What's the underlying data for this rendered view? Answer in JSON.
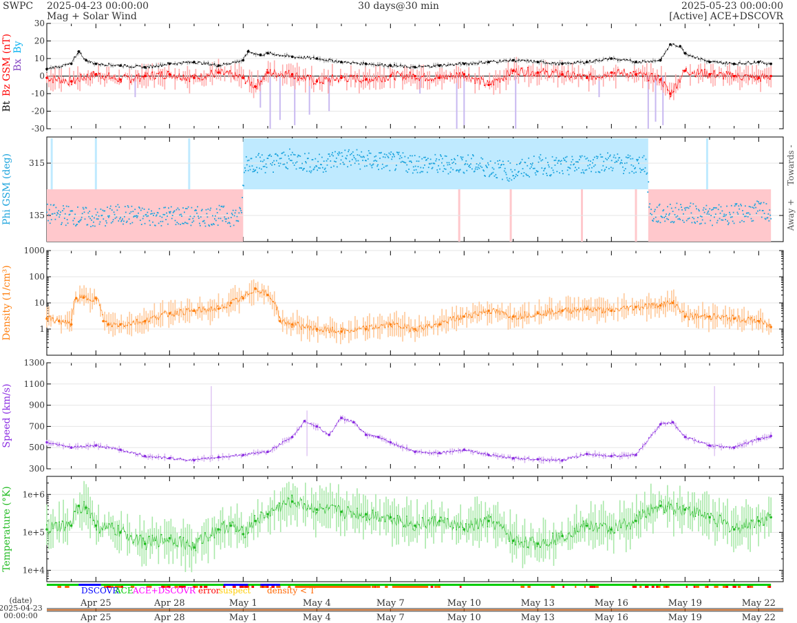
{
  "header": {
    "org": "SWPC",
    "start": "2025-04-23 00:00:00",
    "subtitle": "Mag + Solar Wind",
    "span": "30 days@30 min",
    "end": "2025-05-23 00:00:00",
    "source": "[Active] ACE+DSCOVR"
  },
  "colors": {
    "bt": "#000000",
    "bz": "#ff0000",
    "bz_band": "#ffaaaa",
    "bx": "#8040c0",
    "by": "#00b0f0",
    "bxby_band": "#c8b8f0",
    "phi": "#1aa3dd",
    "towards_band": "#bfeaff",
    "away_band": "#ffc8cc",
    "density": "#ff7f0e",
    "density_band": "#ffc898",
    "speed": "#8a2be2",
    "speed_band": "#d8b8f0",
    "temp": "#22bb22",
    "temp_band": "#a8e8a8",
    "dscovr": "#0000ff",
    "ace": "#00cc00",
    "acedscovr": "#ff00ff",
    "error": "#ff0000",
    "suspect": "#ffcc00",
    "density_lt_t": "#ff6600"
  },
  "chart_data": [
    {
      "type": "line",
      "panel": "mag",
      "ylabel": [
        "Bt",
        "Bz GSM (nT)",
        "Bx",
        "By"
      ],
      "ylim": [
        -30,
        30
      ],
      "yticks": [
        -30,
        -20,
        -10,
        0,
        10,
        20,
        30
      ],
      "series": [
        {
          "name": "Bt",
          "x": [
            0,
            1,
            1.3,
            1.6,
            2,
            3,
            4,
            5,
            6,
            7,
            8,
            8.2,
            8.7,
            9,
            10,
            11,
            12,
            13,
            14,
            15,
            16,
            17,
            18,
            19,
            20,
            21,
            22,
            23,
            24,
            25,
            25.4,
            25.8,
            26,
            27,
            28,
            29,
            29.5
          ],
          "values": [
            4,
            7,
            14,
            9,
            7,
            6,
            5,
            7,
            8,
            6,
            9,
            14,
            12,
            13,
            11,
            10,
            8,
            7,
            6,
            5,
            6,
            7,
            8,
            9,
            8,
            7,
            8,
            10,
            8,
            9,
            18,
            17,
            13,
            8,
            7,
            8,
            7
          ]
        },
        {
          "name": "Bz GSM",
          "x": [
            0,
            1,
            2,
            3,
            4,
            5,
            6,
            7,
            8,
            8.5,
            9,
            10,
            11,
            12,
            13,
            14,
            15,
            16,
            17,
            18,
            19,
            20,
            21,
            22,
            23,
            24,
            25,
            25.4,
            26,
            27,
            28,
            29,
            29.5
          ],
          "values": [
            -1,
            -3,
            1,
            -2,
            0,
            1,
            -1,
            2,
            -1,
            -6,
            2,
            1,
            -3,
            -1,
            -2,
            0,
            0,
            -1,
            1,
            -5,
            3,
            2,
            1,
            -1,
            2,
            1,
            -2,
            -10,
            3,
            1,
            0,
            -1,
            0
          ]
        }
      ]
    },
    {
      "type": "scatter",
      "panel": "phi",
      "ylabel": "Phi GSM (deg)",
      "ylim": [
        45,
        405
      ],
      "yticks": [
        135,
        315
      ],
      "annotations": [
        "Towards -",
        "Away +"
      ],
      "towards_intervals": [
        [
          8.0,
          24.5
        ]
      ],
      "away_intervals": [
        [
          0,
          8.0
        ],
        [
          24.5,
          29.5
        ]
      ],
      "series": [
        {
          "name": "Phi GSM",
          "x": [
            0,
            1,
            2,
            3,
            4,
            5,
            6,
            7,
            7.9,
            8.1,
            9,
            10,
            11,
            12,
            13,
            14,
            15,
            16,
            17,
            18,
            19,
            20,
            21,
            22,
            23,
            24,
            24.4,
            24.6,
            25,
            26,
            27,
            28,
            29,
            29.5
          ],
          "values": [
            140,
            135,
            125,
            140,
            130,
            135,
            130,
            135,
            130,
            320,
            315,
            330,
            310,
            335,
            325,
            320,
            315,
            310,
            315,
            300,
            285,
            310,
            300,
            315,
            320,
            305,
            320,
            135,
            140,
            145,
            135,
            140,
            150,
            145
          ]
        }
      ]
    },
    {
      "type": "line",
      "panel": "density",
      "ylabel": "Density (1/cm³)",
      "yscale": "log",
      "ylim": [
        0.1,
        1000
      ],
      "yticks": [
        1,
        10,
        100,
        1000
      ],
      "series": [
        {
          "name": "Density",
          "x": [
            0,
            0.5,
            1,
            1.2,
            1.5,
            2,
            2.3,
            2.5,
            3,
            4,
            5,
            6,
            7,
            7.5,
            8,
            8.5,
            9,
            9.5,
            10,
            11,
            12,
            13,
            14,
            15,
            16,
            17,
            18,
            19,
            20,
            21,
            22,
            23,
            24,
            25,
            25.5,
            26,
            27,
            28,
            29,
            29.5
          ],
          "values": [
            2.5,
            2,
            1.5,
            15,
            16,
            15,
            2,
            1.5,
            1.5,
            2,
            4,
            5,
            6,
            10,
            15,
            35,
            20,
            2,
            1.5,
            1,
            0.8,
            1,
            1.5,
            1,
            1.5,
            3,
            5,
            3,
            4,
            5,
            6,
            5,
            7,
            8,
            10,
            3,
            3,
            2.5,
            2,
            1.2
          ]
        }
      ]
    },
    {
      "type": "line",
      "panel": "speed",
      "ylabel": "Speed (km/s)",
      "ylim": [
        300,
        1300
      ],
      "yticks": [
        300,
        500,
        700,
        900,
        1100,
        1300
      ],
      "series": [
        {
          "name": "Speed",
          "x": [
            0,
            1,
            2,
            3,
            4,
            5,
            6,
            7,
            8,
            9,
            10,
            10.5,
            11,
            11.5,
            12,
            12.5,
            13,
            13.5,
            14,
            15,
            16,
            17,
            18,
            19,
            20,
            21,
            22,
            23,
            24,
            25,
            25.5,
            26,
            27,
            28,
            29,
            29.5
          ],
          "values": [
            550,
            500,
            520,
            480,
            420,
            400,
            380,
            410,
            430,
            460,
            600,
            750,
            700,
            620,
            780,
            740,
            620,
            600,
            550,
            460,
            450,
            480,
            430,
            400,
            390,
            380,
            440,
            420,
            430,
            720,
            740,
            600,
            520,
            500,
            580,
            610
          ]
        }
      ]
    },
    {
      "type": "line",
      "panel": "temperature",
      "ylabel": "Temperature (°K)",
      "yscale": "log",
      "ylim": [
        5000,
        3000000
      ],
      "yticks": [
        10000,
        100000,
        1000000
      ],
      "yticklabels": [
        "1e+4",
        "1e+5",
        "1e+6"
      ],
      "series": [
        {
          "name": "Temperature",
          "x": [
            0,
            1,
            1.3,
            1.6,
            2,
            3,
            4,
            5,
            6,
            7,
            7.5,
            8,
            8.5,
            9,
            10,
            11,
            12,
            13,
            14,
            15,
            16,
            17,
            18,
            19,
            20,
            21,
            22,
            23,
            24,
            25,
            26,
            27,
            28,
            29,
            29.5
          ],
          "values": [
            120000,
            150000,
            500000,
            450000,
            150000,
            100000,
            50000,
            70000,
            40000,
            120000,
            150000,
            90000,
            200000,
            300000,
            650000,
            400000,
            350000,
            300000,
            250000,
            150000,
            200000,
            120000,
            200000,
            60000,
            50000,
            80000,
            150000,
            120000,
            200000,
            500000,
            400000,
            250000,
            120000,
            200000,
            250000
          ]
        }
      ]
    }
  ],
  "legend": {
    "dscovr": "DSCOVR",
    "ace": "ACE",
    "acedscovr": "ACE+DSCOVR",
    "error": "error",
    "suspect": "suspect",
    "density_lt_t": "density < T"
  },
  "xaxis": {
    "date_label": "(date)",
    "start_date": "2025-04-23",
    "start_time": "00:00:00",
    "ticks": [
      {
        "day": 2,
        "label": "Apr 25"
      },
      {
        "day": 5,
        "label": "Apr 28"
      },
      {
        "day": 8,
        "label": "May 1"
      },
      {
        "day": 11,
        "label": "May 4"
      },
      {
        "day": 14,
        "label": "May 7"
      },
      {
        "day": 17,
        "label": "May 10"
      },
      {
        "day": 20,
        "label": "May 13"
      },
      {
        "day": 23,
        "label": "May 16"
      },
      {
        "day": 26,
        "label": "May 19"
      },
      {
        "day": 29,
        "label": "May 22"
      }
    ]
  }
}
